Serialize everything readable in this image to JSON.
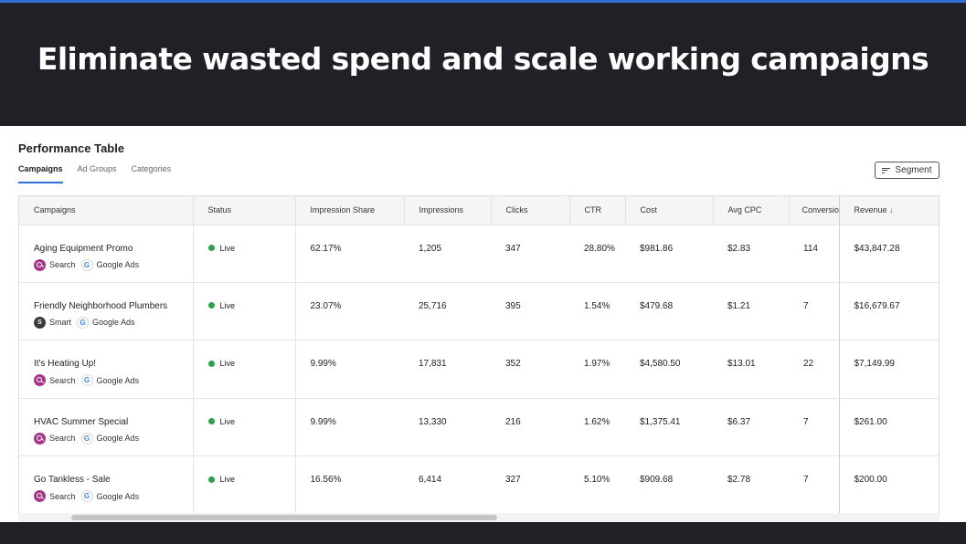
{
  "banner": {
    "title": "Eliminate wasted spend and scale working campaigns"
  },
  "panel": {
    "title": "Performance Table",
    "tabs": [
      {
        "label": "Campaigns",
        "active": true
      },
      {
        "label": "Ad Groups",
        "active": false
      },
      {
        "label": "Categories",
        "active": false
      }
    ],
    "segment_label": "Segment"
  },
  "table": {
    "columns": [
      "Campaigns",
      "Status",
      "Impression Share",
      "Impressions",
      "Clicks",
      "CTR",
      "Cost",
      "Avg CPC",
      "Conversions",
      "Revenue"
    ],
    "sort_indicator": "↓",
    "rows": [
      {
        "name": "Aging Equipment Promo",
        "type": "Search",
        "type_glyph": "",
        "network": "Google Ads",
        "status": "Live",
        "impression_share": "62.17%",
        "impressions": "1,205",
        "clicks": "347",
        "ctr": "28.80%",
        "cost": "$981.86",
        "avg_cpc": "$2.83",
        "conversions": "114",
        "revenue": "$43,847.28"
      },
      {
        "name": "Friendly Neighborhood Plumbers",
        "type": "Smart",
        "type_glyph": "S",
        "network": "Google Ads",
        "status": "Live",
        "impression_share": "23.07%",
        "impressions": "25,716",
        "clicks": "395",
        "ctr": "1.54%",
        "cost": "$479.68",
        "avg_cpc": "$1.21",
        "conversions": "7",
        "revenue": "$16,679.67"
      },
      {
        "name": "It's Heating Up!",
        "type": "Search",
        "type_glyph": "",
        "network": "Google Ads",
        "status": "Live",
        "impression_share": "9.99%",
        "impressions": "17,831",
        "clicks": "352",
        "ctr": "1.97%",
        "cost": "$4,580.50",
        "avg_cpc": "$13.01",
        "conversions": "22",
        "revenue": "$7,149.99"
      },
      {
        "name": "HVAC Summer Special",
        "type": "Search",
        "type_glyph": "",
        "network": "Google Ads",
        "status": "Live",
        "impression_share": "9.99%",
        "impressions": "13,330",
        "clicks": "216",
        "ctr": "1.62%",
        "cost": "$1,375.41",
        "avg_cpc": "$6.37",
        "conversions": "7",
        "revenue": "$261.00"
      },
      {
        "name": "Go Tankless - Sale",
        "type": "Search",
        "type_glyph": "",
        "network": "Google Ads",
        "status": "Live",
        "impression_share": "16.56%",
        "impressions": "6,414",
        "clicks": "327",
        "ctr": "5.10%",
        "cost": "$909.68",
        "avg_cpc": "$2.78",
        "conversions": "7",
        "revenue": "$200.00"
      }
    ]
  },
  "icons": {
    "google_glyph": "G"
  },
  "colors": {
    "accent": "#2f6fd8",
    "live": "#2ba34a",
    "search_badge": "#a8348a",
    "smart_badge": "#3a3a3a",
    "banner_bg": "#1f2126"
  }
}
